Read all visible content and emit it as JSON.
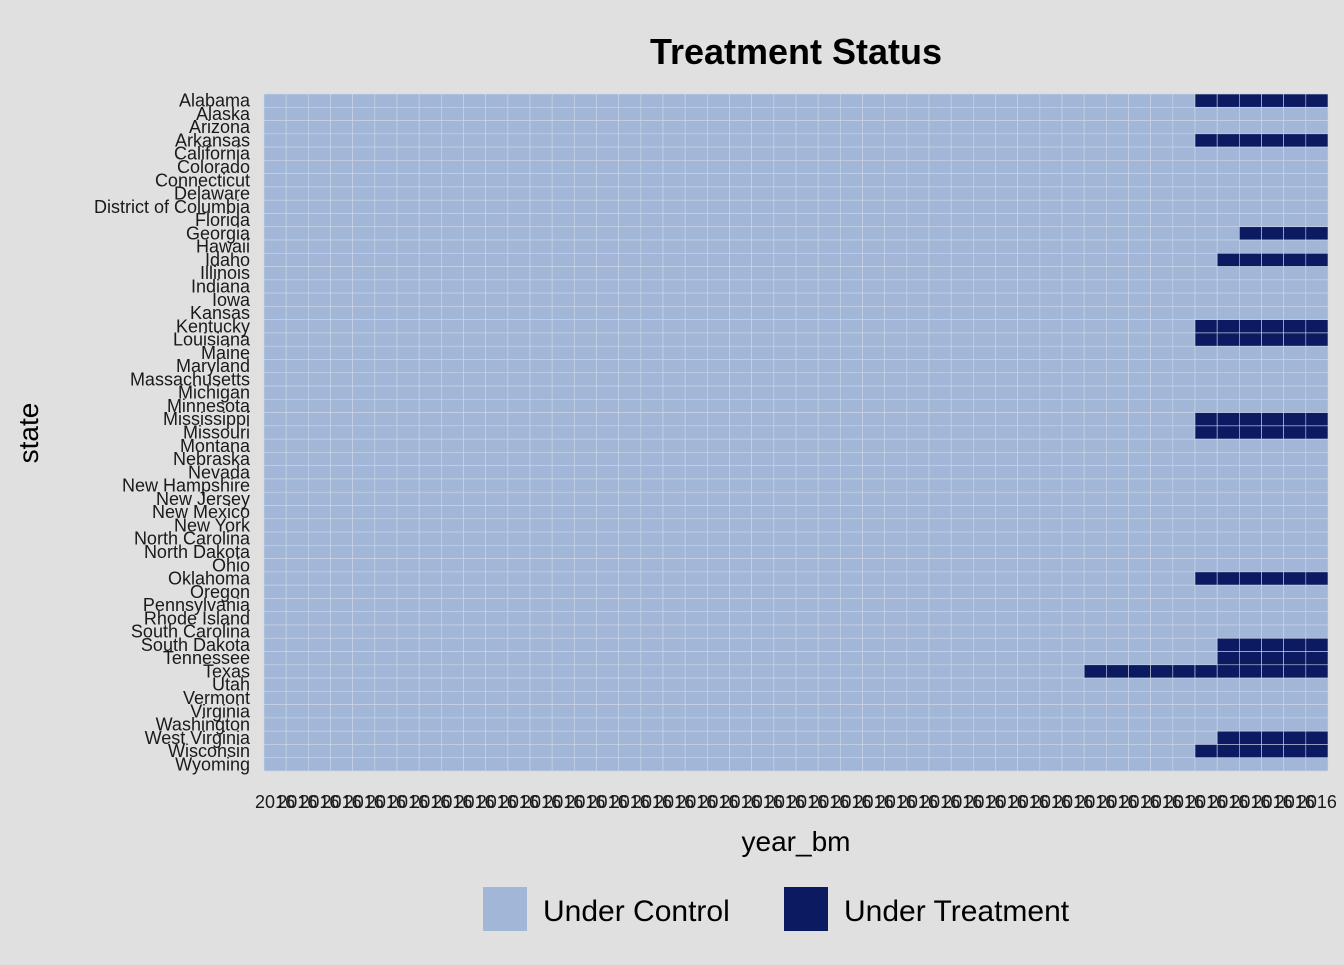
{
  "chart_data": {
    "type": "heatmap",
    "title": "Treatment Status",
    "xlabel": "year_bm",
    "ylabel": "state",
    "x_count": 48,
    "x_tick_label_prefix": "2016",
    "y_categories": [
      "Alabama",
      "Alaska",
      "Arizona",
      "Arkansas",
      "California",
      "Colorado",
      "Connecticut",
      "Delaware",
      "District of Columbia",
      "Florida",
      "Georgia",
      "Hawaii",
      "Idaho",
      "Illinois",
      "Indiana",
      "Iowa",
      "Kansas",
      "Kentucky",
      "Louisiana",
      "Maine",
      "Maryland",
      "Massachusetts",
      "Michigan",
      "Minnesota",
      "Mississippi",
      "Missouri",
      "Montana",
      "Nebraska",
      "Nevada",
      "New Hampshire",
      "New Jersey",
      "New Mexico",
      "New York",
      "North Carolina",
      "North Dakota",
      "Ohio",
      "Oklahoma",
      "Oregon",
      "Pennsylvania",
      "Rhode Island",
      "South Carolina",
      "South Dakota",
      "Tennessee",
      "Texas",
      "Utah",
      "Vermont",
      "Virginia",
      "Washington",
      "West Virginia",
      "Wisconsin",
      "Wyoming"
    ],
    "treated_start_index": {
      "Alabama": 42,
      "Arkansas": 42,
      "Georgia": 44,
      "Idaho": 43,
      "Kentucky": 42,
      "Louisiana": 42,
      "Mississippi": 42,
      "Missouri": 42,
      "Oklahoma": 42,
      "South Dakota": 43,
      "Tennessee": 43,
      "Texas": 37,
      "West Virginia": 43,
      "Wisconsin": 42
    },
    "legend": [
      {
        "label": "Under Control",
        "color": "#a2b7d8"
      },
      {
        "label": "Under Treatment",
        "color": "#0b1a61"
      }
    ],
    "legend_position": "bottom",
    "grid": true
  }
}
